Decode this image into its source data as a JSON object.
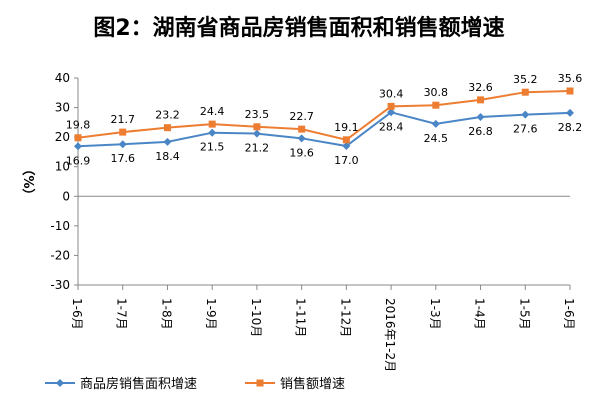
{
  "chart_data": {
    "type": "line",
    "title": "图2：湖南省商品房销售面积和销售额增速",
    "ylabel": "（%）",
    "xlabel": "",
    "ylim": [
      -30,
      40
    ],
    "yticks": [
      40,
      30,
      20,
      10,
      0,
      -10,
      -20,
      -30
    ],
    "categories": [
      "1-6月",
      "1-7月",
      "1-8月",
      "1-9月",
      "1-10月",
      "1-11月",
      "1-12月",
      "2016年1-2月",
      "1-3月",
      "1-4月",
      "1-5月",
      "1-6月"
    ],
    "series": [
      {
        "name": "商品房销售面积增速",
        "color": "#4a86c5",
        "marker": "diamond",
        "values": [
          16.9,
          17.6,
          18.4,
          21.5,
          21.2,
          19.6,
          17.0,
          28.4,
          24.5,
          26.8,
          27.6,
          28.2
        ],
        "labels": [
          "16.9",
          "17.6",
          "18.4",
          "21.5",
          "21.2",
          "19.6",
          "17.0",
          "28.4",
          "24.5",
          "26.8",
          "27.6",
          "28.2"
        ]
      },
      {
        "name": "销售额增速",
        "color": "#ed7d31",
        "marker": "square",
        "values": [
          19.8,
          21.7,
          23.2,
          24.4,
          23.5,
          22.7,
          19.1,
          30.4,
          30.8,
          32.6,
          35.2,
          35.6
        ],
        "labels": [
          "19.8",
          "21.7",
          "23.2",
          "24.4",
          "23.5",
          "22.7",
          "19.1",
          "30.4",
          "30.8",
          "32.6",
          "35.2",
          "35.6"
        ]
      }
    ],
    "grid": false,
    "legend": "bottom-left"
  }
}
